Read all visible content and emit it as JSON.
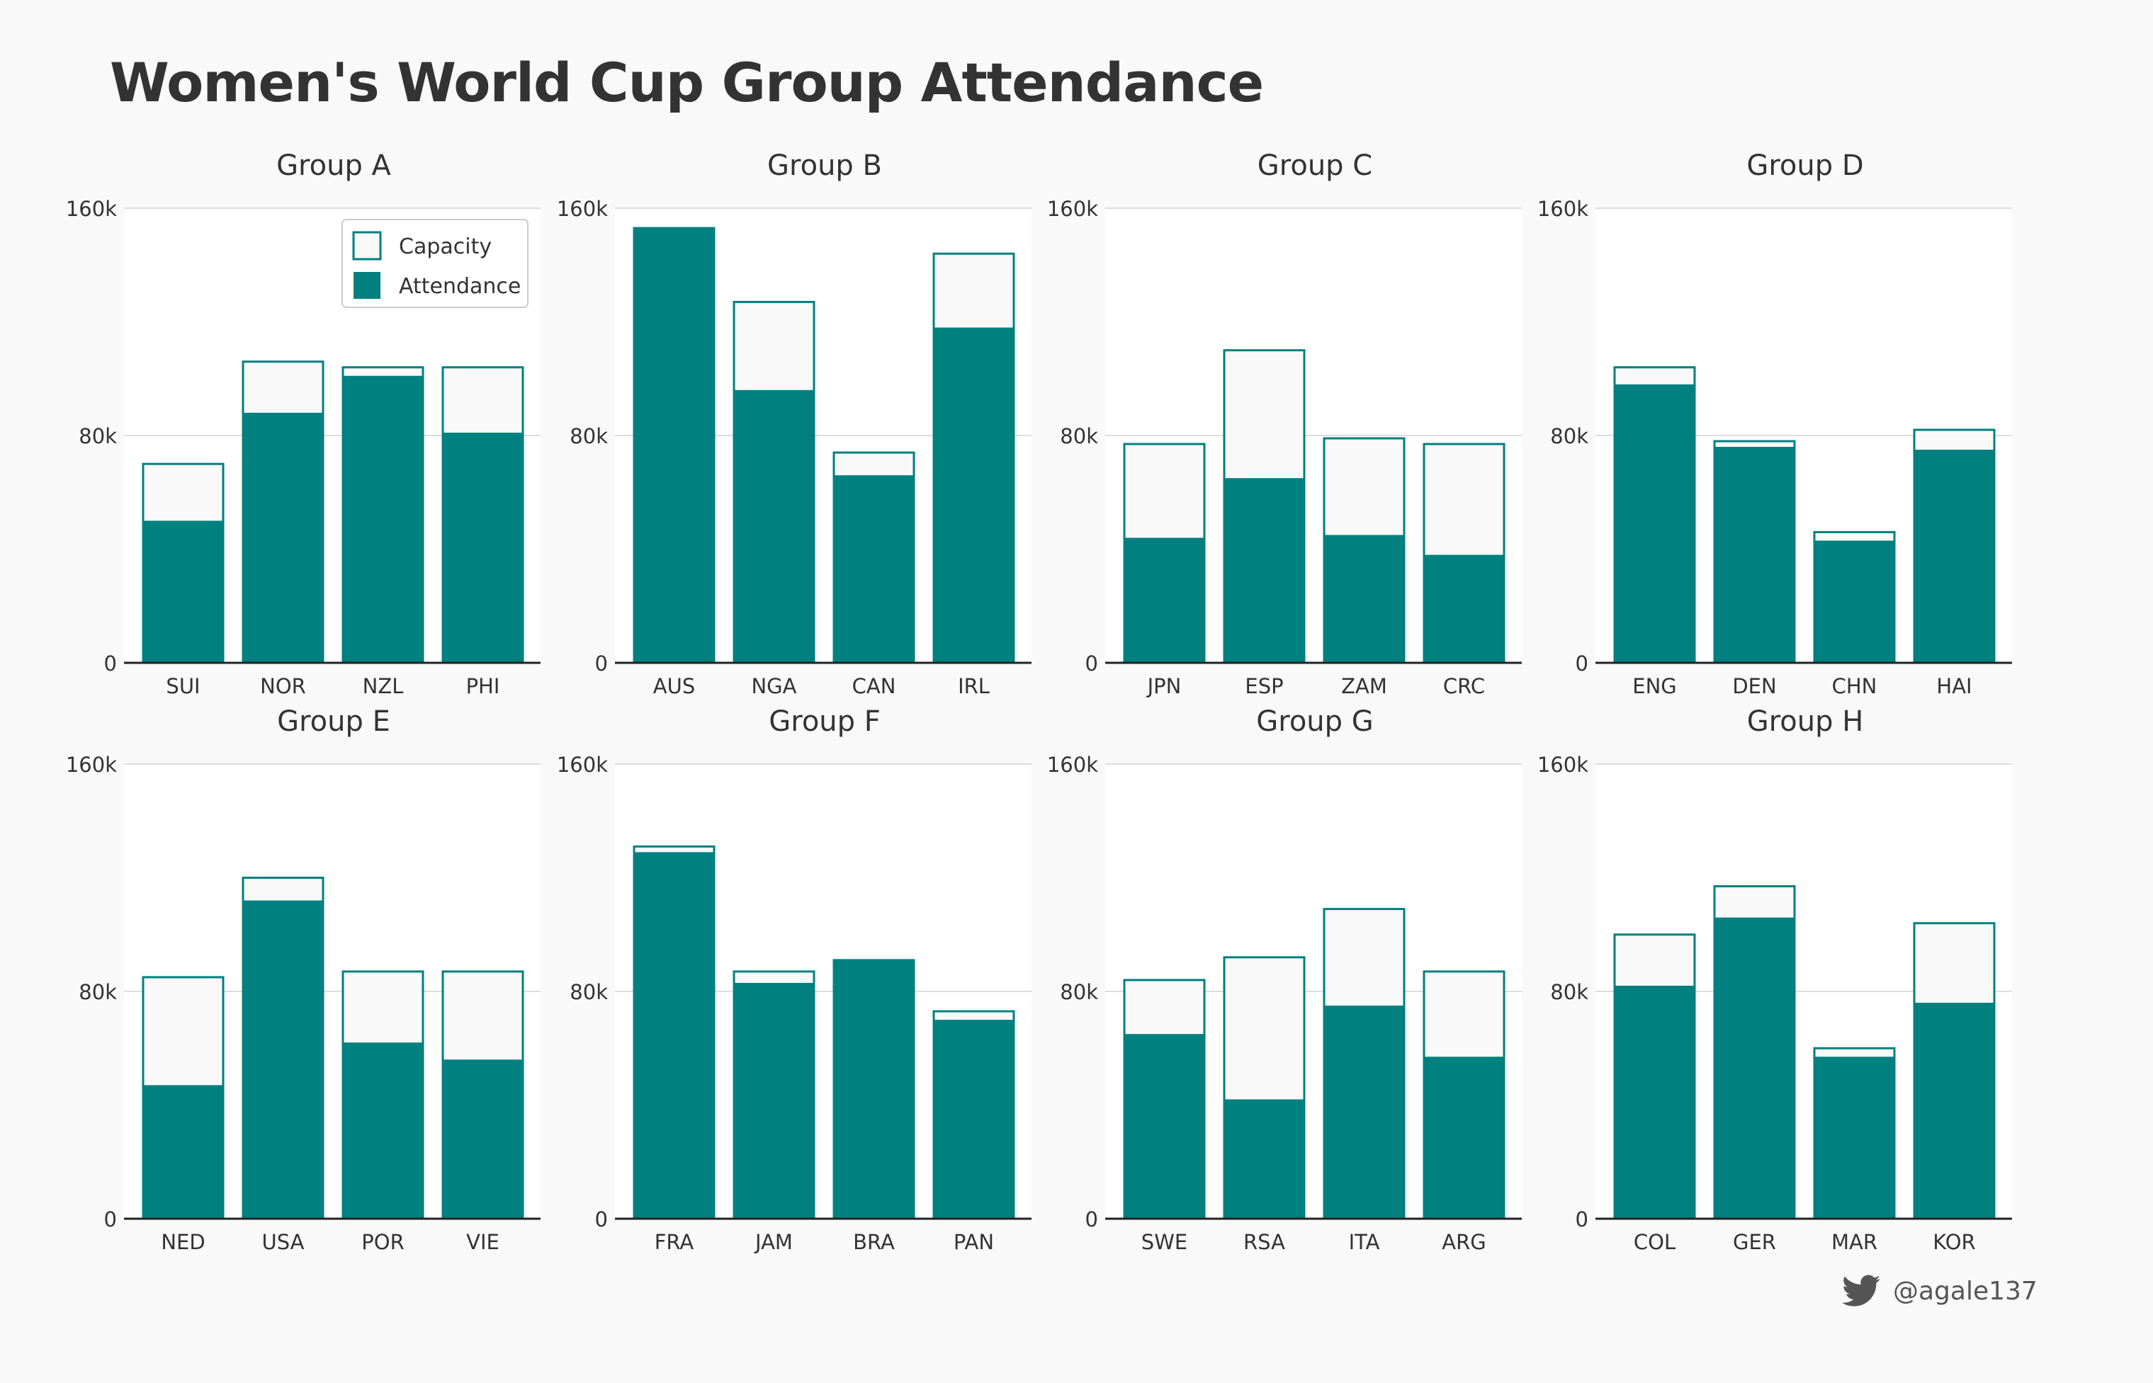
{
  "title": "Women's World Cup Group Attendance",
  "credit": "@agale137",
  "legend": {
    "capacity": "Capacity",
    "attendance": "Attendance"
  },
  "colors": {
    "attendance": "#00807f",
    "capacity_fill": "#f9f9f9",
    "capacity_edge": "#00807f",
    "background": "#f9f9f9",
    "panel": "#ffffff",
    "grid": "#dddddd",
    "text": "#333333"
  },
  "chart_data": [
    {
      "type": "bar",
      "title": "Group A",
      "categories": [
        "SUI",
        "NOR",
        "NZL",
        "PHI"
      ],
      "series": [
        {
          "name": "Capacity",
          "values": [
            70000,
            106000,
            104000,
            104000
          ]
        },
        {
          "name": "Attendance",
          "values": [
            50000,
            88000,
            101000,
            81000
          ]
        }
      ],
      "yticks": [
        "0",
        "80k",
        "160k"
      ],
      "ylim": [
        0,
        160000
      ],
      "legend": "top-right"
    },
    {
      "type": "bar",
      "title": "Group B",
      "categories": [
        "AUS",
        "NGA",
        "CAN",
        "IRL"
      ],
      "series": [
        {
          "name": "Capacity",
          "values": [
            153000,
            127000,
            74000,
            144000
          ]
        },
        {
          "name": "Attendance",
          "values": [
            153000,
            96000,
            66000,
            118000
          ]
        }
      ],
      "yticks": [
        "0",
        "80k",
        "160k"
      ],
      "ylim": [
        0,
        160000
      ]
    },
    {
      "type": "bar",
      "title": "Group C",
      "categories": [
        "JPN",
        "ESP",
        "ZAM",
        "CRC"
      ],
      "series": [
        {
          "name": "Capacity",
          "values": [
            77000,
            110000,
            79000,
            77000
          ]
        },
        {
          "name": "Attendance",
          "values": [
            44000,
            65000,
            45000,
            38000
          ]
        }
      ],
      "yticks": [
        "0",
        "80k",
        "160k"
      ],
      "ylim": [
        0,
        160000
      ]
    },
    {
      "type": "bar",
      "title": "Group D",
      "categories": [
        "ENG",
        "DEN",
        "CHN",
        "HAI"
      ],
      "series": [
        {
          "name": "Capacity",
          "values": [
            104000,
            78000,
            46000,
            82000
          ]
        },
        {
          "name": "Attendance",
          "values": [
            98000,
            76000,
            43000,
            75000
          ]
        }
      ],
      "yticks": [
        "0",
        "80k",
        "160k"
      ],
      "ylim": [
        0,
        160000
      ]
    },
    {
      "type": "bar",
      "title": "Group E",
      "categories": [
        "NED",
        "USA",
        "POR",
        "VIE"
      ],
      "series": [
        {
          "name": "Capacity",
          "values": [
            85000,
            120000,
            87000,
            87000
          ]
        },
        {
          "name": "Attendance",
          "values": [
            47000,
            112000,
            62000,
            56000
          ]
        }
      ],
      "yticks": [
        "0",
        "80k",
        "160k"
      ],
      "ylim": [
        0,
        160000
      ]
    },
    {
      "type": "bar",
      "title": "Group F",
      "categories": [
        "FRA",
        "JAM",
        "BRA",
        "PAN"
      ],
      "series": [
        {
          "name": "Capacity",
          "values": [
            131000,
            87000,
            91000,
            73000
          ]
        },
        {
          "name": "Attendance",
          "values": [
            129000,
            83000,
            91000,
            70000
          ]
        }
      ],
      "yticks": [
        "0",
        "80k",
        "160k"
      ],
      "ylim": [
        0,
        160000
      ]
    },
    {
      "type": "bar",
      "title": "Group G",
      "categories": [
        "SWE",
        "RSA",
        "ITA",
        "ARG"
      ],
      "series": [
        {
          "name": "Capacity",
          "values": [
            84000,
            92000,
            109000,
            87000
          ]
        },
        {
          "name": "Attendance",
          "values": [
            65000,
            42000,
            75000,
            57000
          ]
        }
      ],
      "yticks": [
        "0",
        "80k",
        "160k"
      ],
      "ylim": [
        0,
        160000
      ]
    },
    {
      "type": "bar",
      "title": "Group H",
      "categories": [
        "COL",
        "GER",
        "MAR",
        "KOR"
      ],
      "series": [
        {
          "name": "Capacity",
          "values": [
            100000,
            117000,
            60000,
            104000
          ]
        },
        {
          "name": "Attendance",
          "values": [
            82000,
            106000,
            57000,
            76000
          ]
        }
      ],
      "yticks": [
        "0",
        "80k",
        "160k"
      ],
      "ylim": [
        0,
        160000
      ]
    }
  ]
}
